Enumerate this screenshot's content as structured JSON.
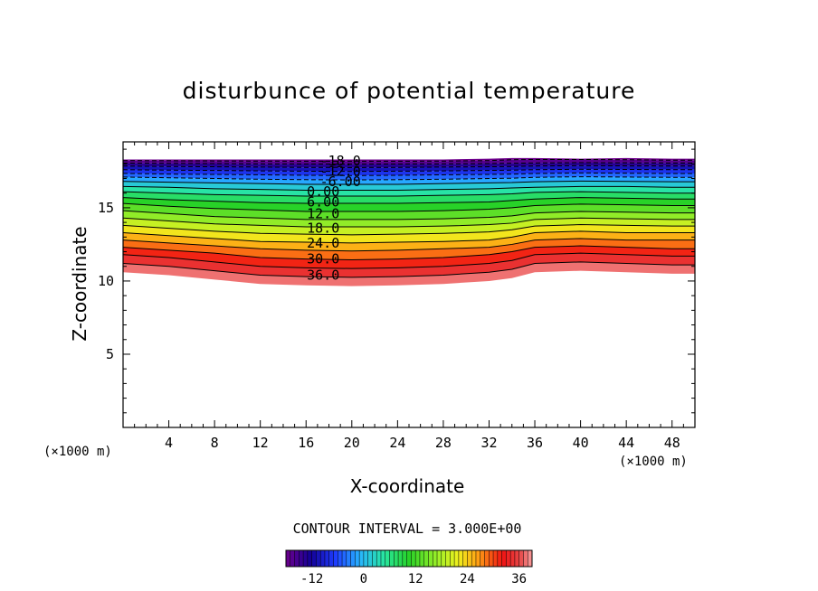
{
  "chart_data": {
    "type": "contour",
    "title": "disturbunce of potential temperature",
    "xlabel": "X-coordinate",
    "ylabel": "Z-coordinate",
    "x_unit": "(×1000 m)",
    "xlim": [
      0,
      50
    ],
    "ylim": [
      0,
      19.5
    ],
    "x_ticks": [
      4,
      8,
      12,
      16,
      20,
      24,
      28,
      32,
      36,
      40,
      44,
      48
    ],
    "y_ticks": [
      5,
      10,
      15
    ],
    "contour_interval_label": "CONTOUR INTERVAL = 3.000E+00",
    "contour_interval": 3,
    "levels": [
      -18,
      -15,
      -12,
      -9,
      -6,
      -3,
      0,
      3,
      6,
      9,
      12,
      15,
      18,
      21,
      24,
      27,
      30,
      33,
      36,
      39
    ],
    "contour_labels": [
      {
        "text": "-18.0",
        "x": 19,
        "z": 18.2
      },
      {
        "text": "-12.0",
        "x": 19,
        "z": 17.5
      },
      {
        "text": "-6.00",
        "x": 19,
        "z": 16.8
      },
      {
        "text": "0.00",
        "x": 17.5,
        "z": 16.1
      },
      {
        "text": "6.00",
        "x": 17.5,
        "z": 15.4
      },
      {
        "text": "12.0",
        "x": 17.5,
        "z": 14.6
      },
      {
        "text": "18.0",
        "x": 17.5,
        "z": 13.6
      },
      {
        "text": "24.0",
        "x": 17.5,
        "z": 12.6
      },
      {
        "text": "30.0",
        "x": 17.5,
        "z": 11.5
      },
      {
        "text": "36.0",
        "x": 17.5,
        "z": 10.4
      }
    ],
    "profile_x": [
      0,
      4,
      8,
      12,
      16,
      20,
      24,
      28,
      32,
      34,
      36,
      40,
      44,
      48,
      50
    ],
    "lower_boundary_z": [
      10.6,
      10.4,
      10.1,
      9.8,
      9.7,
      9.65,
      9.7,
      9.8,
      10.0,
      10.2,
      10.6,
      10.7,
      10.6,
      10.5,
      10.5
    ],
    "isoline_levels": [
      36,
      33,
      30,
      27,
      24,
      21,
      18,
      15,
      12,
      9,
      6,
      3,
      0,
      -3,
      -6,
      -9,
      -12,
      -15,
      -18
    ],
    "isoline_z_at_x": [
      [
        11.2,
        11.0,
        10.7,
        10.4,
        10.3,
        10.25,
        10.3,
        10.4,
        10.6,
        10.8,
        11.2,
        11.3,
        11.2,
        11.1,
        11.1
      ],
      [
        11.8,
        11.6,
        11.3,
        11.0,
        10.9,
        10.85,
        10.9,
        11.0,
        11.2,
        11.4,
        11.8,
        11.9,
        11.8,
        11.7,
        11.7
      ],
      [
        12.3,
        12.1,
        11.9,
        11.6,
        11.5,
        11.45,
        11.5,
        11.6,
        11.8,
        12.0,
        12.3,
        12.4,
        12.3,
        12.2,
        12.2
      ],
      [
        12.8,
        12.6,
        12.4,
        12.2,
        12.1,
        12.05,
        12.1,
        12.2,
        12.3,
        12.5,
        12.8,
        12.9,
        12.8,
        12.8,
        12.8
      ],
      [
        13.3,
        13.1,
        12.9,
        12.7,
        12.65,
        12.6,
        12.65,
        12.7,
        12.8,
        13.0,
        13.3,
        13.4,
        13.3,
        13.3,
        13.3
      ],
      [
        13.8,
        13.6,
        13.4,
        13.25,
        13.2,
        13.15,
        13.2,
        13.25,
        13.35,
        13.5,
        13.75,
        13.85,
        13.8,
        13.75,
        13.75
      ],
      [
        14.3,
        14.1,
        13.9,
        13.8,
        13.7,
        13.7,
        13.7,
        13.75,
        13.85,
        13.95,
        14.2,
        14.3,
        14.25,
        14.2,
        14.2
      ],
      [
        14.8,
        14.6,
        14.4,
        14.3,
        14.2,
        14.2,
        14.2,
        14.25,
        14.35,
        14.45,
        14.65,
        14.75,
        14.7,
        14.65,
        14.65
      ],
      [
        15.3,
        15.1,
        14.95,
        14.85,
        14.75,
        14.75,
        14.75,
        14.8,
        14.9,
        15.0,
        15.15,
        15.25,
        15.2,
        15.15,
        15.15
      ],
      [
        15.7,
        15.55,
        15.45,
        15.35,
        15.3,
        15.3,
        15.3,
        15.35,
        15.4,
        15.5,
        15.6,
        15.7,
        15.65,
        15.6,
        15.6
      ],
      [
        16.1,
        16.0,
        15.9,
        15.85,
        15.8,
        15.8,
        15.8,
        15.85,
        15.9,
        15.95,
        16.05,
        16.1,
        16.05,
        16.0,
        16.0
      ],
      [
        16.45,
        16.4,
        16.3,
        16.25,
        16.2,
        16.2,
        16.2,
        16.25,
        16.3,
        16.35,
        16.4,
        16.45,
        16.45,
        16.4,
        16.4
      ],
      [
        16.8,
        16.75,
        16.7,
        16.65,
        16.6,
        16.6,
        16.6,
        16.65,
        16.7,
        16.72,
        16.78,
        16.82,
        16.8,
        16.78,
        16.78
      ],
      [
        17.1,
        17.05,
        17.0,
        16.95,
        16.92,
        16.9,
        16.92,
        16.95,
        17.0,
        17.02,
        17.08,
        17.12,
        17.1,
        17.08,
        17.08
      ],
      [
        17.35,
        17.3,
        17.28,
        17.25,
        17.22,
        17.2,
        17.22,
        17.25,
        17.28,
        17.3,
        17.34,
        17.38,
        17.36,
        17.34,
        17.34
      ],
      [
        17.6,
        17.57,
        17.55,
        17.52,
        17.5,
        17.48,
        17.5,
        17.52,
        17.55,
        17.57,
        17.6,
        17.63,
        17.62,
        17.6,
        17.6
      ],
      [
        17.85,
        17.82,
        17.8,
        17.78,
        17.76,
        17.75,
        17.76,
        17.78,
        17.8,
        17.82,
        17.85,
        17.88,
        17.86,
        17.85,
        17.85
      ],
      [
        18.05,
        18.03,
        18.02,
        18.0,
        17.99,
        17.98,
        17.99,
        18.0,
        18.02,
        18.04,
        18.06,
        18.08,
        18.07,
        18.06,
        18.06
      ],
      [
        18.22,
        18.21,
        18.2,
        18.19,
        18.18,
        18.18,
        18.18,
        18.19,
        18.22,
        18.28,
        18.3,
        18.3,
        18.28,
        18.25,
        18.25
      ]
    ],
    "top_boundary_z": [
      18.3,
      18.3,
      18.3,
      18.3,
      18.3,
      18.3,
      18.3,
      18.3,
      18.35,
      18.4,
      18.4,
      18.35,
      18.4,
      18.35,
      18.35
    ],
    "colorbar": {
      "range": [
        -18,
        39
      ],
      "tick_labels": [
        "-12",
        "0",
        "12",
        "24",
        "36"
      ],
      "tick_values": [
        -12,
        0,
        12,
        24,
        36
      ]
    }
  }
}
